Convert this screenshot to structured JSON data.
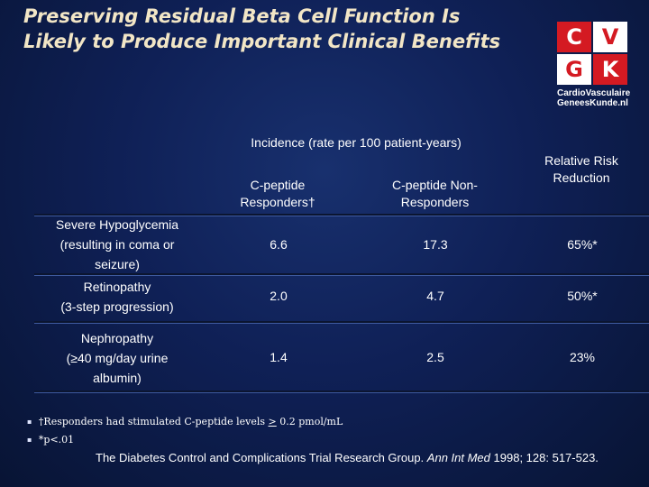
{
  "slide": {
    "title_line1": "Preserving Residual Beta Cell Function Is",
    "title_line2": "Likely to Produce Important Clinical Benefits"
  },
  "logo": {
    "letters": [
      "C",
      "V",
      "G",
      "K"
    ],
    "line1": "CardioVasculaire",
    "line2": "GeneesKunde.nl"
  },
  "table": {
    "span_header": "Incidence (rate per 100 patient-years)",
    "col1": {
      "line1": "C-peptide",
      "line2": "Responders†"
    },
    "col2": {
      "line1": "C-peptide Non-",
      "line2": "Responders"
    },
    "col3": {
      "line1": "Relative Risk",
      "line2": "Reduction"
    },
    "rows": [
      {
        "l1": "Severe Hypoglycemia",
        "l2": "(resulting in coma or",
        "l3": "seizure)",
        "resp": "6.6",
        "nonresp": "17.3",
        "rrr": "65%*"
      },
      {
        "l1": "Retinopathy",
        "l2": "(3-step progression)",
        "resp": "2.0",
        "nonresp": "4.7",
        "rrr": "50%*"
      },
      {
        "l1": "Nephropathy",
        "l2": "(≥40 mg/day urine",
        "l3": "albumin)",
        "resp": "1.4",
        "nonresp": "2.5",
        "rrr": "23%"
      }
    ]
  },
  "footnotes": {
    "note1_prefix": "†Responders had stimulated C-peptide levels",
    "note1_ge": ">",
    "note1_suffix": "0.2 pmol/mL",
    "note2": "*p<.01"
  },
  "citation": {
    "text": "The Diabetes Control and Complications Trial Research Group.",
    "journal": "Ann Int Med",
    "detail": "1998; 128: 517-523."
  }
}
